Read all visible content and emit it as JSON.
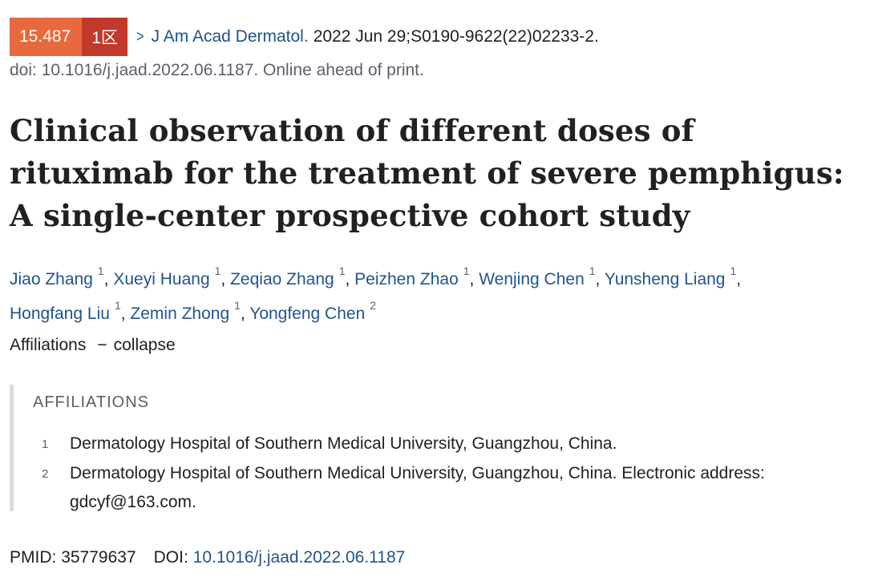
{
  "journal_line": {
    "impact_factor": "15.487",
    "zone": "1区",
    "chevron": "chevron-right-icon",
    "journal": "J Am Acad Dermatol.",
    "citation": "2022 Jun 29;S0190-9622(22)02233-2."
  },
  "doi_line": "doi: 10.1016/j.jaad.2022.06.1187. Online ahead of print.",
  "title": "Clinical observation of different doses of rituximab for the treatment of severe pemphigus: A single-center prospective cohort study",
  "authors": [
    {
      "name": "Jiao Zhang",
      "aff": "1"
    },
    {
      "name": "Xueyi Huang",
      "aff": "1"
    },
    {
      "name": "Zeqiao Zhang",
      "aff": "1"
    },
    {
      "name": "Peizhen Zhao",
      "aff": "1"
    },
    {
      "name": "Wenjing Chen",
      "aff": "1"
    },
    {
      "name": "Yunsheng Liang",
      "aff": "1"
    },
    {
      "name": "Hongfang Liu",
      "aff": "1"
    },
    {
      "name": "Zemin Zhong",
      "aff": "1"
    },
    {
      "name": "Yongfeng Chen",
      "aff": "2"
    }
  ],
  "affiliations_toggle": {
    "label": "Affiliations",
    "dash": "−",
    "action": "collapse"
  },
  "affiliations": {
    "heading": "AFFILIATIONS",
    "items": [
      {
        "num": "1",
        "text": "Dermatology Hospital of Southern Medical University, Guangzhou, China."
      },
      {
        "num": "2",
        "text": "Dermatology Hospital of Southern Medical University, Guangzhou, China. Electronic address: gdcyf@163.com."
      }
    ]
  },
  "ids": {
    "pmid_label": "PMID:",
    "pmid": "35779637",
    "doi_label": "DOI:",
    "doi": "10.1016/j.jaad.2022.06.1187"
  },
  "colors": {
    "link": "#20558a",
    "if_badge": "#e8693d",
    "zone_badge": "#c0392b"
  }
}
